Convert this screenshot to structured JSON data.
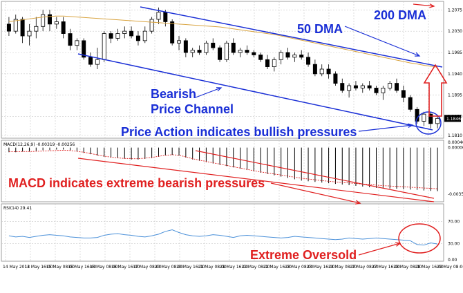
{
  "chart_data": [
    {
      "type": "candlestick",
      "panel": "price",
      "ylim": [
        1.181,
        1.209
      ],
      "y_ticks": [
        "1.2075",
        "1.2030",
        "1.1985",
        "1.1940",
        "1.1895",
        "1.1850",
        "1.1810"
      ],
      "current_value": "1.1846",
      "candles": [
        {
          "o": 1.2045,
          "h": 1.206,
          "l": 1.202,
          "c": 1.203
        },
        {
          "o": 1.203,
          "h": 1.2065,
          "l": 1.2025,
          "c": 1.2055
        },
        {
          "o": 1.2055,
          "h": 1.206,
          "l": 1.2005,
          "c": 1.202
        },
        {
          "o": 1.202,
          "h": 1.2045,
          "l": 1.2,
          "c": 1.203
        },
        {
          "o": 1.203,
          "h": 1.206,
          "l": 1.2015,
          "c": 1.204
        },
        {
          "o": 1.204,
          "h": 1.2075,
          "l": 1.203,
          "c": 1.2065
        },
        {
          "o": 1.2065,
          "h": 1.2075,
          "l": 1.203,
          "c": 1.2045
        },
        {
          "o": 1.2045,
          "h": 1.206,
          "l": 1.2035,
          "c": 1.205
        },
        {
          "o": 1.205,
          "h": 1.206,
          "l": 1.2015,
          "c": 1.2025
        },
        {
          "o": 1.2025,
          "h": 1.2035,
          "l": 1.199,
          "c": 1.2
        },
        {
          "o": 1.2,
          "h": 1.2015,
          "l": 1.199,
          "c": 1.201
        },
        {
          "o": 1.201,
          "h": 1.2015,
          "l": 1.197,
          "c": 1.1975
        },
        {
          "o": 1.1975,
          "h": 1.1985,
          "l": 1.1955,
          "c": 1.196
        },
        {
          "o": 1.196,
          "h": 1.1995,
          "l": 1.195,
          "c": 1.197
        },
        {
          "o": 1.197,
          "h": 1.203,
          "l": 1.1965,
          "c": 1.2025
        },
        {
          "o": 1.2025,
          "h": 1.203,
          "l": 1.2005,
          "c": 1.2015
        },
        {
          "o": 1.2015,
          "h": 1.2035,
          "l": 1.201,
          "c": 1.2025
        },
        {
          "o": 1.2025,
          "h": 1.204,
          "l": 1.2015,
          "c": 1.203
        },
        {
          "o": 1.203,
          "h": 1.204,
          "l": 1.2015,
          "c": 1.202
        },
        {
          "o": 1.202,
          "h": 1.203,
          "l": 1.2,
          "c": 1.201
        },
        {
          "o": 1.201,
          "h": 1.204,
          "l": 1.2005,
          "c": 1.203
        },
        {
          "o": 1.203,
          "h": 1.206,
          "l": 1.2025,
          "c": 1.2055
        },
        {
          "o": 1.2055,
          "h": 1.208,
          "l": 1.2045,
          "c": 1.207
        },
        {
          "o": 1.207,
          "h": 1.2075,
          "l": 1.204,
          "c": 1.205
        },
        {
          "o": 1.205,
          "h": 1.2055,
          "l": 1.2,
          "c": 1.2005
        },
        {
          "o": 1.2005,
          "h": 1.202,
          "l": 1.199,
          "c": 1.201
        },
        {
          "o": 1.201,
          "h": 1.2015,
          "l": 1.1975,
          "c": 1.1985
        },
        {
          "o": 1.1985,
          "h": 1.1995,
          "l": 1.1975,
          "c": 1.199
        },
        {
          "o": 1.199,
          "h": 1.2,
          "l": 1.198,
          "c": 1.1985
        },
        {
          "o": 1.1985,
          "h": 1.201,
          "l": 1.198,
          "c": 1.2005
        },
        {
          "o": 1.2005,
          "h": 1.2015,
          "l": 1.199,
          "c": 1.1995
        },
        {
          "o": 1.1995,
          "h": 1.2,
          "l": 1.1965,
          "c": 1.197
        },
        {
          "o": 1.197,
          "h": 1.201,
          "l": 1.1965,
          "c": 1.2005
        },
        {
          "o": 1.2005,
          "h": 1.2015,
          "l": 1.198,
          "c": 1.1985
        },
        {
          "o": 1.1985,
          "h": 1.1995,
          "l": 1.1975,
          "c": 1.199
        },
        {
          "o": 1.199,
          "h": 1.2,
          "l": 1.198,
          "c": 1.1985
        },
        {
          "o": 1.1985,
          "h": 1.199,
          "l": 1.1975,
          "c": 1.198
        },
        {
          "o": 1.198,
          "h": 1.1985,
          "l": 1.1965,
          "c": 1.197
        },
        {
          "o": 1.197,
          "h": 1.198,
          "l": 1.195,
          "c": 1.1955
        },
        {
          "o": 1.1955,
          "h": 1.1975,
          "l": 1.1945,
          "c": 1.197
        },
        {
          "o": 1.197,
          "h": 1.199,
          "l": 1.196,
          "c": 1.1985
        },
        {
          "o": 1.1985,
          "h": 1.1995,
          "l": 1.197,
          "c": 1.1975
        },
        {
          "o": 1.1975,
          "h": 1.1985,
          "l": 1.1965,
          "c": 1.198
        },
        {
          "o": 1.198,
          "h": 1.199,
          "l": 1.197,
          "c": 1.1975
        },
        {
          "o": 1.1975,
          "h": 1.1985,
          "l": 1.1955,
          "c": 1.196
        },
        {
          "o": 1.196,
          "h": 1.197,
          "l": 1.1935,
          "c": 1.194
        },
        {
          "o": 1.194,
          "h": 1.196,
          "l": 1.1935,
          "c": 1.195
        },
        {
          "o": 1.195,
          "h": 1.196,
          "l": 1.193,
          "c": 1.194
        },
        {
          "o": 1.194,
          "h": 1.1945,
          "l": 1.1915,
          "c": 1.192
        },
        {
          "o": 1.192,
          "h": 1.193,
          "l": 1.19,
          "c": 1.1905
        },
        {
          "o": 1.1905,
          "h": 1.192,
          "l": 1.189,
          "c": 1.1915
        },
        {
          "o": 1.1915,
          "h": 1.1925,
          "l": 1.1905,
          "c": 1.191
        },
        {
          "o": 1.191,
          "h": 1.192,
          "l": 1.19,
          "c": 1.1915
        },
        {
          "o": 1.1915,
          "h": 1.1925,
          "l": 1.1905,
          "c": 1.191
        },
        {
          "o": 1.191,
          "h": 1.1915,
          "l": 1.1895,
          "c": 1.19
        },
        {
          "o": 1.19,
          "h": 1.1915,
          "l": 1.1885,
          "c": 1.191
        },
        {
          "o": 1.191,
          "h": 1.1925,
          "l": 1.1905,
          "c": 1.192
        },
        {
          "o": 1.192,
          "h": 1.193,
          "l": 1.19,
          "c": 1.1905
        },
        {
          "o": 1.1905,
          "h": 1.1915,
          "l": 1.188,
          "c": 1.189
        },
        {
          "o": 1.189,
          "h": 1.1895,
          "l": 1.186,
          "c": 1.1865
        },
        {
          "o": 1.1865,
          "h": 1.187,
          "l": 1.1835,
          "c": 1.184
        },
        {
          "o": 1.184,
          "h": 1.186,
          "l": 1.183,
          "c": 1.1855
        },
        {
          "o": 1.1855,
          "h": 1.186,
          "l": 1.1825,
          "c": 1.1835
        },
        {
          "o": 1.1835,
          "h": 1.185,
          "l": 1.1825,
          "c": 1.1846
        }
      ],
      "ma50": [
        1.205,
        1.2052,
        1.2054,
        1.2056,
        1.2058,
        1.206,
        1.2061,
        1.2062,
        1.2062,
        1.2061,
        1.206,
        1.2059,
        1.2058,
        1.2057,
        1.2056,
        1.2055,
        1.2054,
        1.2053,
        1.2052,
        1.2051,
        1.205,
        1.2049,
        1.2048,
        1.2047,
        1.2046,
        1.2045,
        1.2044,
        1.2043,
        1.2042,
        1.2041,
        1.204,
        1.2039,
        1.2037,
        1.2035,
        1.2033,
        1.2031,
        1.2029,
        1.2027,
        1.2025,
        1.2023,
        1.202,
        1.2017,
        1.2014,
        1.2011,
        1.2008,
        1.2005,
        1.2002,
        1.1999,
        1.1996,
        1.1993,
        1.199,
        1.1987,
        1.1984,
        1.1981,
        1.1978,
        1.1975,
        1.1972,
        1.1969,
        1.1966,
        1.1963,
        1.1961,
        1.1958,
        1.1956,
        1.1954
      ],
      "annotations": [
        "50 DMA",
        "200 DMA",
        "Bearish",
        "Price Channel",
        "Price Action indicates bullish pressures"
      ]
    },
    {
      "type": "bar",
      "panel": "macd",
      "header": "MACD(12,26,9) -0.00319 -0.00256",
      "y_ticks": [
        "0.00040",
        "0.00000",
        "-0.00353"
      ],
      "ylim": [
        -0.004,
        0.00045
      ],
      "histogram": [
        -0.00035,
        -0.00035,
        -0.0003,
        -0.0003,
        -0.00025,
        -0.0002,
        -0.0002,
        -0.00015,
        -0.00015,
        -0.0002,
        -0.0003,
        -0.0004,
        -0.0005,
        -0.0006,
        -0.0007,
        -0.00075,
        -0.0008,
        -0.00085,
        -0.0009,
        -0.0009,
        -0.00085,
        -0.0008,
        -0.0007,
        -0.0006,
        -0.00055,
        -0.0006,
        -0.00075,
        -0.0009,
        -0.001,
        -0.0011,
        -0.0012,
        -0.0013,
        -0.0014,
        -0.0015,
        -0.0016,
        -0.0017,
        -0.0018,
        -0.0019,
        -0.002,
        -0.0021,
        -0.0022,
        -0.0023,
        -0.0024,
        -0.0025,
        -0.00255,
        -0.0026,
        -0.00265,
        -0.0027,
        -0.00275,
        -0.0028,
        -0.00285,
        -0.0029,
        -0.00295,
        -0.003,
        -0.00305,
        -0.0031,
        -0.0031,
        -0.00312,
        -0.00315,
        -0.00318,
        -0.0032,
        -0.00325,
        -0.00328,
        -0.0033
      ],
      "signal": [
        -0.0003,
        -0.00031,
        -0.0003,
        -0.0003,
        -0.00028,
        -0.00026,
        -0.00024,
        -0.00022,
        -0.0002,
        -0.00022,
        -0.00028,
        -0.00035,
        -0.00045,
        -0.00055,
        -0.00065,
        -0.00072,
        -0.00078,
        -0.00082,
        -0.00084,
        -0.00084,
        -0.0008,
        -0.00074,
        -0.00066,
        -0.00058,
        -0.00054,
        -0.00058,
        -0.0007,
        -0.00084,
        -0.00095,
        -0.00105,
        -0.00115,
        -0.00125,
        -0.00135,
        -0.00145,
        -0.00155,
        -0.00165,
        -0.00175,
        -0.00184,
        -0.00192,
        -0.002,
        -0.00208,
        -0.00216,
        -0.00224,
        -0.00232,
        -0.00238,
        -0.00244,
        -0.0025,
        -0.00255,
        -0.0026,
        -0.00264,
        -0.00268,
        -0.00272,
        -0.00276,
        -0.0028,
        -0.00284,
        -0.00288,
        -0.00291,
        -0.00294,
        -0.00297,
        -0.003,
        -0.00303,
        -0.00306,
        -0.00309,
        -0.00312
      ],
      "annotation": "MACD indicates extreme bearish pressures"
    },
    {
      "type": "line",
      "panel": "rsi",
      "header": "RSI(14) 29.41",
      "y_ticks": [
        "70.00",
        "30.00",
        "0.00"
      ],
      "ylim": [
        0,
        100
      ],
      "values": [
        44,
        42,
        43,
        41,
        43,
        45,
        46,
        45,
        44,
        42,
        41,
        40,
        40,
        41,
        45,
        47,
        48,
        46,
        45,
        43,
        42,
        44,
        47,
        52,
        55,
        50,
        46,
        44,
        43,
        44,
        46,
        45,
        43,
        41,
        44,
        45,
        44,
        43,
        42,
        41,
        40,
        41,
        43,
        42,
        41,
        40,
        39,
        38,
        37,
        38,
        40,
        39,
        38,
        39,
        40,
        39,
        38,
        37,
        36,
        35,
        28,
        27,
        31,
        29
      ],
      "annotation": "Extreme Oversold"
    }
  ],
  "x_axis_labels": [
    "14 May 2013",
    "14 May 16:00",
    "15 May 08:00",
    "15 May 16:00",
    "16 May 08:00",
    "16 May 16:00",
    "17 May 08:00",
    "20 May 08:00",
    "20 May 16:00",
    "21 May 08:00",
    "21 May 16:00",
    "22 May 08:00",
    "22 May 16:00",
    "23 May 08:00",
    "23 May 16:00",
    "24 May 08:00",
    "27 May 08:00",
    "27 May 16:00",
    "28 May 08:00",
    "28 May 16:00",
    "29 May 08:00"
  ],
  "colors": {
    "annotation_blue": "#1a2fd6",
    "annotation_red": "#e02020",
    "ma_line": "#d9a441",
    "macd_signal": "#e02020",
    "rsi_line": "#4a90d9",
    "grid": "#c8c8c8"
  }
}
